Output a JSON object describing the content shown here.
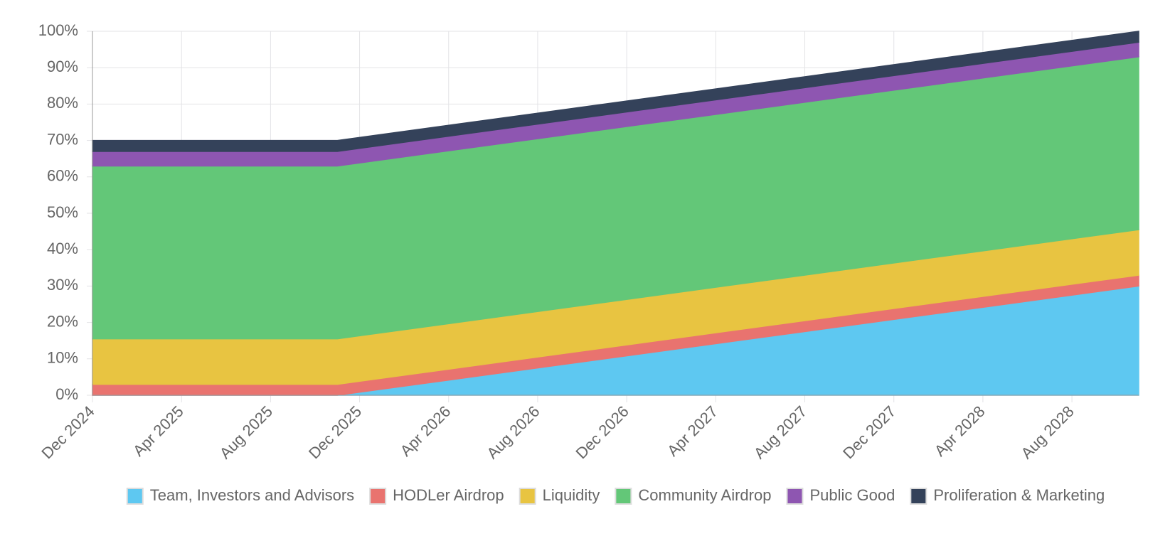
{
  "chart_data": {
    "type": "stacked_area",
    "x": [
      "Dec 2024",
      "Nov 2025",
      "Nov 2028"
    ],
    "xlim": [
      "Dec 2024",
      "Nov 2028"
    ],
    "xticks": [
      "Dec 2024",
      "Apr 2025",
      "Aug 2025",
      "Dec 2025",
      "Apr 2026",
      "Aug 2026",
      "Dec 2026",
      "Apr 2027",
      "Aug 2027",
      "Dec 2027",
      "Apr 2028",
      "Aug 2028"
    ],
    "ylim": [
      0,
      100
    ],
    "yticks": [
      {
        "value": 0,
        "label": "0%"
      },
      {
        "value": 10,
        "label": "10%"
      },
      {
        "value": 20,
        "label": "20%"
      },
      {
        "value": 30,
        "label": "30%"
      },
      {
        "value": 40,
        "label": "40%"
      },
      {
        "value": 50,
        "label": "50%"
      },
      {
        "value": 60,
        "label": "60%"
      },
      {
        "value": 70,
        "label": "70%"
      },
      {
        "value": 80,
        "label": "80%"
      },
      {
        "value": 90,
        "label": "90%"
      },
      {
        "value": 100,
        "label": "100%"
      }
    ],
    "grid": true,
    "legend": "bottom",
    "series": [
      {
        "name": "Team, Investors and Advisors",
        "color": "#5ec8f1",
        "values": [
          0,
          0,
          30
        ]
      },
      {
        "name": "HODLer Airdrop",
        "color": "#e9736f",
        "values": [
          3,
          3,
          3
        ]
      },
      {
        "name": "Liquidity",
        "color": "#e8c441",
        "values": [
          12.5,
          12.5,
          12.5
        ]
      },
      {
        "name": "Community Airdrop",
        "color": "#63c778",
        "values": [
          47.5,
          47.5,
          47.5
        ]
      },
      {
        "name": "Public Good",
        "color": "#8e56b1",
        "values": [
          4,
          4,
          4
        ]
      },
      {
        "name": "Proliferation & Marketing",
        "color": "#34425a",
        "values": [
          3,
          3,
          3
        ]
      }
    ]
  }
}
